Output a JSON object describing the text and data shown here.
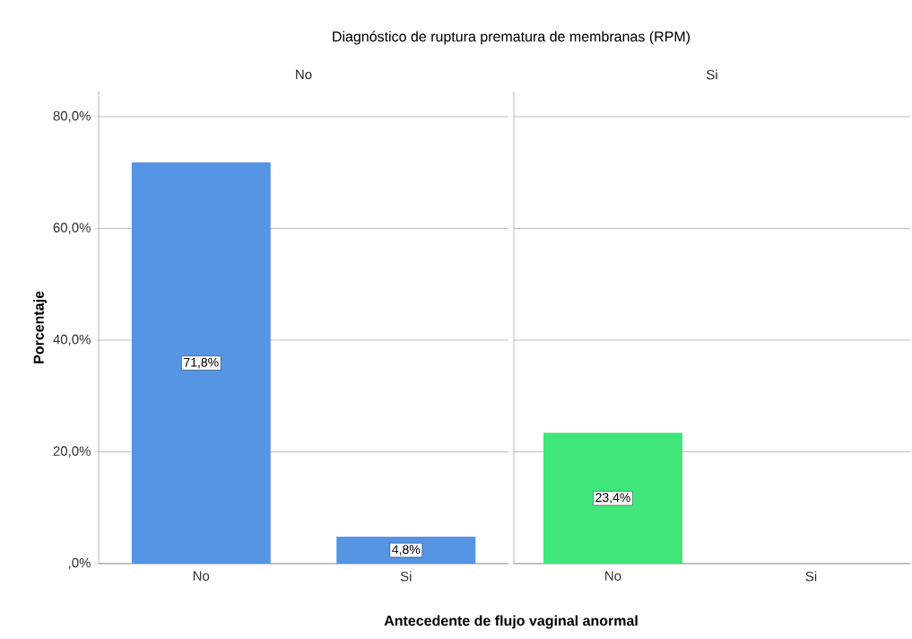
{
  "chart_data": [
    {
      "type": "bar",
      "title": "Diagnóstico de ruptura prematura de membranas (RPM)",
      "subtitle": "No",
      "xlabel": "Antecedente de flujo vaginal anormal",
      "ylabel": "Porcentaje",
      "categories": [
        "No",
        "Si"
      ],
      "values": [
        71.8,
        4.8
      ],
      "value_labels": [
        "71,8%",
        "4,8%"
      ],
      "color": "#5595e3",
      "ylim": [
        0,
        84.5
      ],
      "yticks": [
        {
          "value": 0,
          "label": ",0%"
        },
        {
          "value": 20,
          "label": "20,0%"
        },
        {
          "value": 40,
          "label": "40,0%"
        },
        {
          "value": 60,
          "label": "60,0%"
        },
        {
          "value": 80,
          "label": "80,0%"
        }
      ],
      "grid": "y"
    },
    {
      "type": "bar",
      "subtitle": "Si",
      "categories": [
        "No",
        "Si"
      ],
      "values": [
        23.4,
        null
      ],
      "value_labels": [
        "23,4%",
        null
      ],
      "color": "#40e67a",
      "ylim": [
        0,
        84.5
      ],
      "yticks": [
        0,
        20,
        40,
        60,
        80
      ],
      "grid": "y",
      "tick_labels": "x"
    }
  ]
}
